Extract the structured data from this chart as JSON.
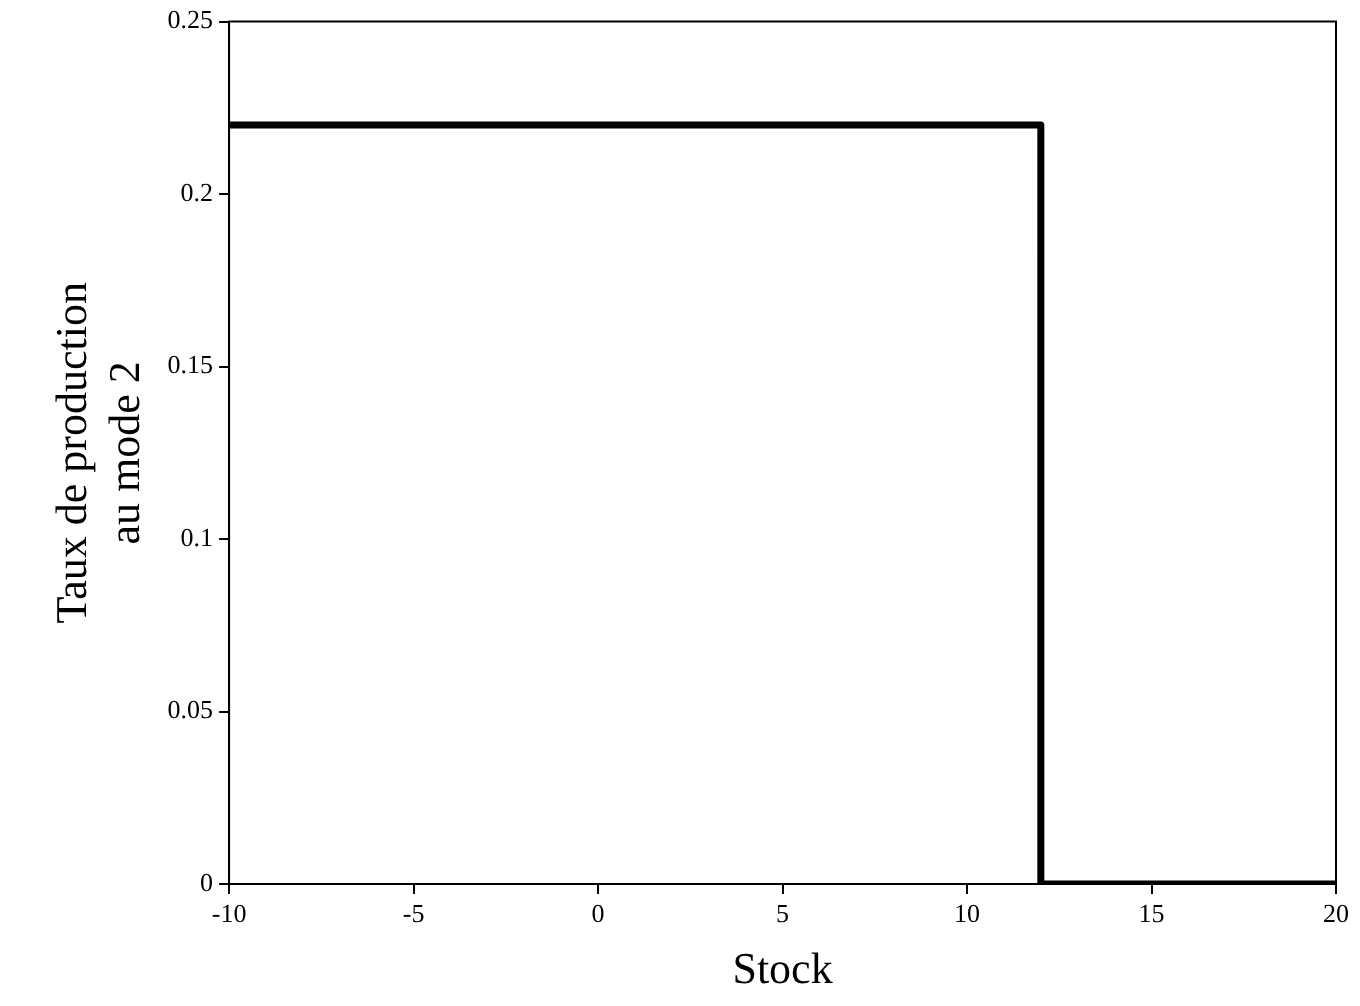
{
  "chart_data": {
    "type": "line",
    "xlabel": "Stock",
    "ylabel": "Taux de production\nau mode 2",
    "x": [
      -10,
      12,
      12,
      20
    ],
    "series": [
      {
        "color": "#000000",
        "values": [
          0.22,
          0.22,
          0,
          0
        ]
      }
    ],
    "xlim": [
      -10,
      20
    ],
    "xticks": [
      -10,
      -5,
      0,
      5,
      10,
      15,
      20
    ],
    "ylim": [
      0,
      0.25
    ],
    "yticks": [
      0,
      0.05,
      0.1,
      0.15,
      0.2,
      0.25
    ],
    "grid": false,
    "legend": false,
    "marker": "none",
    "line_style": "solid"
  }
}
